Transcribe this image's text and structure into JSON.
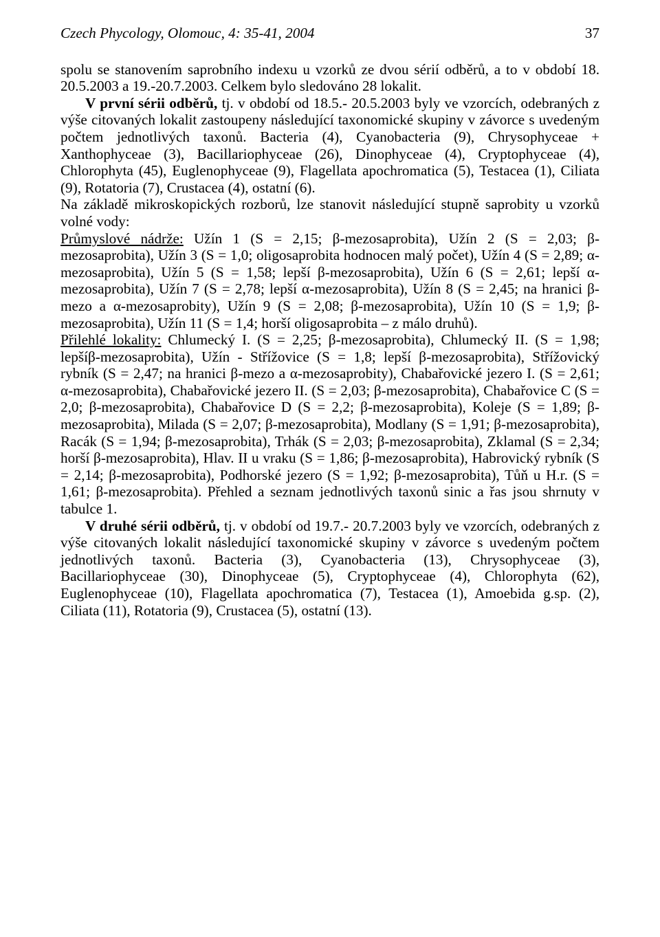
{
  "header": {
    "journal": "Czech Phycology, Olomouc, 4: 35-41, 2004",
    "page_number": "37"
  },
  "body": {
    "p1": "spolu se stanovením saprobního indexu u vzorků ze dvou sérií odběrů, a to v období 18. 20.5.2003 a 19.-20.7.2003. Celkem bylo sledováno 28 lokalit.",
    "p2_lead_bold": "V první sérii odběrů,",
    "p2_rest": " tj. v období od 18.5.- 20.5.2003 byly ve vzorcích, odebraných z výše citovaných lokalit zastoupeny následující taxonomické skupiny v závorce s uvedeným počtem jednotlivých taxonů. Bacteria (4), Cyanobacteria (9), Chrysophyceae + Xanthophyceae (3), Bacillariophyceae (26), Dinophyceae (4), Cryptophyceae (4), Chlorophyta (45), Euglenophyceae (9), Flagellata apochromatica (5), Testacea (1), Ciliata (9), Rotatoria (7), Crustacea (4), ostatní (6).",
    "p3_intro": "Na základě mikroskopických rozborů, lze stanovit následující stupně saprobity u vzorků volné vody:",
    "p4_u": "Průmyslové nádrže:",
    "p4_rest": " Užín 1 (S = 2,15; β-mezosaprobita), Užín 2 (S = 2,03; β-mezosaprobita), Užín 3 (S = 1,0; oligosaprobita hodnocen malý počet), Užín 4 (S = 2,89; α-mezosaprobita), Užín 5 (S = 1,58; lepší β-mezosaprobita), Užín 6 (S = 2,61; lepší α-mezosaprobita), Užín 7 (S = 2,78; lepší α-mezosaprobita), Užín 8 (S = 2,45; na hranici β-mezo a α-mezosaprobity), Užín 9 (S = 2,08; β-mezosaprobita), Užín 10 (S = 1,9; β-mezosaprobita), Užín 11 (S = 1,4; horší oligosaprobita – z málo druhů).",
    "p5_u": "Přilehlé lokality:",
    "p5_rest": " Chlumecký I. (S = 2,25; β-mezosaprobita), Chlumecký II. (S = 1,98; lepšíβ-mezosaprobita), Užín - Střížovice (S = 1,8; lepší β-mezosaprobita), Střížovický rybník (S = 2,47; na hranici β-mezo a α-mezosaprobity), Chabařovické jezero I. (S = 2,61; α-mezosaprobita), Chabařovické jezero II. (S = 2,03; β-mezosaprobita), Chabařovice C (S = 2,0; β-mezosaprobita), Chabařovice D (S = 2,2; β-mezosaprobita), Koleje (S = 1,89; β-mezosaprobita), Milada (S = 2,07; β-mezosaprobita), Modlany (S = 1,91; β-mezosaprobita), Racák (S = 1,94; β-mezosaprobita), Trhák (S = 2,03; β-mezosaprobita), Zklamal (S = 2,34; horší β-mezosaprobita), Hlav. II u vraku (S = 1,86; β-mezosaprobita), Habrovický rybník (S = 2,14; β-mezosaprobita), Podhorské jezero (S = 1,92; β-mezosaprobita), Tůň u H.r. (S = 1,61; β-mezosaprobita). Přehled a seznam jednotlivých taxonů sinic a řas jsou shrnuty v tabulce 1.",
    "p6_lead_bold": "V druhé sérii odběrů,",
    "p6_rest": " tj. v období od 19.7.- 20.7.2003 byly ve vzorcích, odebraných z výše citovaných lokalit následující taxonomické skupiny v závorce s uvedeným počtem jednotlivých taxonů. Bacteria (3), Cyanobacteria (13), Chrysophyceae (3), Bacillariophyceae (30), Dinophyceae (5), Cryptophyceae (4), Chlorophyta (62), Euglenophyceae (10), Flagellata apochromatica (7), Testacea (1), Amoebida g.sp. (2), Ciliata (11), Rotatoria (9), Crustacea (5), ostatní (13)."
  }
}
